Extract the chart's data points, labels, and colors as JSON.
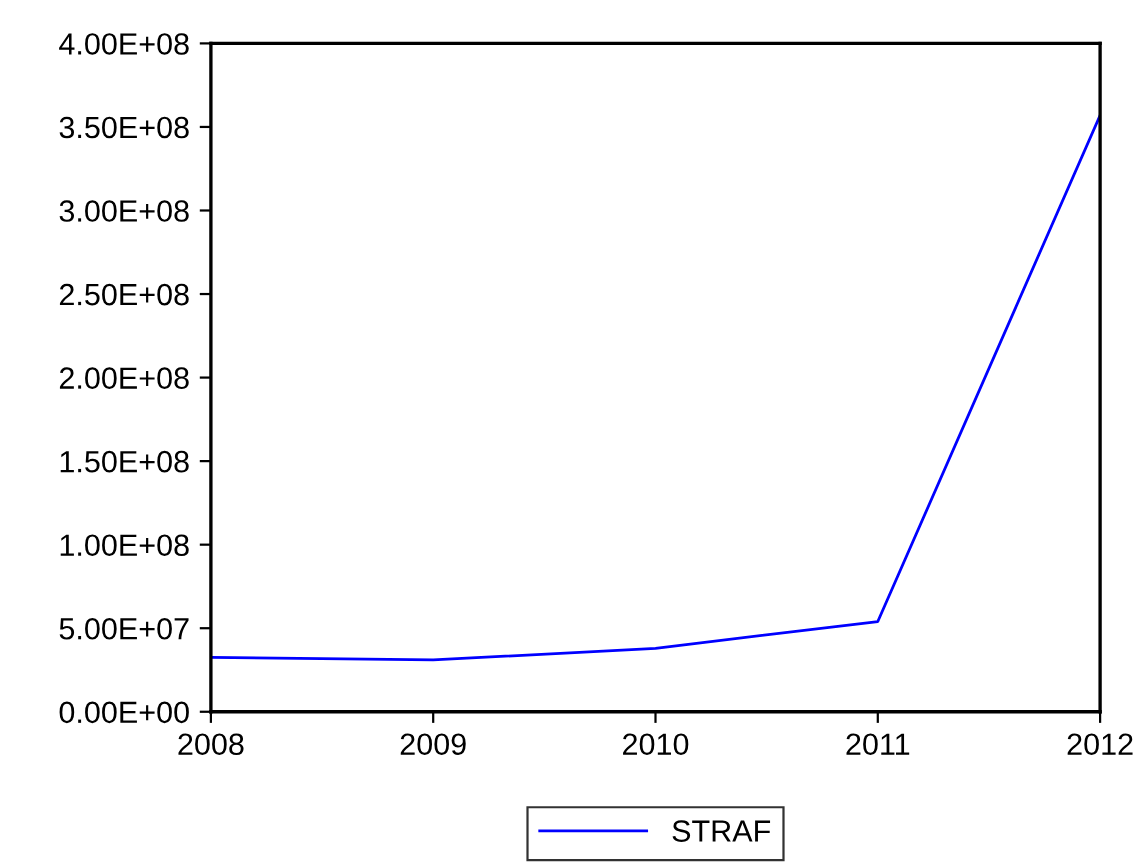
{
  "chart_data": {
    "type": "line",
    "x": [
      2008,
      2009,
      2010,
      2011,
      2012
    ],
    "series": [
      {
        "name": "STRAF",
        "color": "#0000ff",
        "values": [
          32500000,
          31000000,
          38000000,
          54000000,
          357000000
        ]
      }
    ],
    "xlim": [
      2008,
      2012
    ],
    "xticks": [
      2008,
      2009,
      2010,
      2011,
      2012
    ],
    "ylim": [
      0,
      400000000
    ],
    "yticks": [
      {
        "value": 0,
        "label": "0.00E+00"
      },
      {
        "value": 50000000,
        "label": "5.00E+07"
      },
      {
        "value": 100000000,
        "label": "1.00E+08"
      },
      {
        "value": 150000000,
        "label": "1.50E+08"
      },
      {
        "value": 200000000,
        "label": "2.00E+08"
      },
      {
        "value": 250000000,
        "label": "2.50E+08"
      },
      {
        "value": 300000000,
        "label": "3.00E+08"
      },
      {
        "value": 350000000,
        "label": "3.50E+08"
      },
      {
        "value": 400000000,
        "label": "4.00E+08"
      }
    ],
    "grid": false,
    "legend": "bottom",
    "marker": "none",
    "line_style": "solid"
  }
}
